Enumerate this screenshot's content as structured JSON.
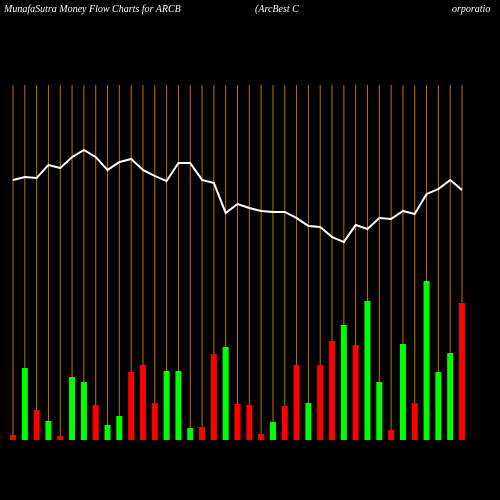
{
  "chart_data": {
    "type": "money-flow",
    "title": "MunafaSutra  Money Flow  Charts for ARCB",
    "subtitle_left": "(ArcBest C",
    "subtitle_right": "orporatio",
    "ylim": [
      0,
      355
    ],
    "grid_color": "#c07000",
    "line_color": "#ffffff",
    "bars": {
      "values": [
        5,
        72,
        30,
        19,
        4,
        63,
        58,
        35,
        15,
        24,
        68,
        75,
        37,
        69,
        69,
        12,
        13,
        86,
        93,
        36,
        35,
        6,
        18,
        34,
        75,
        37,
        75,
        99,
        115,
        95,
        139,
        58,
        10,
        96,
        37,
        159,
        68,
        87,
        137
      ],
      "colors": [
        "#ff0000",
        "#00ff00",
        "#ff0000",
        "#00ff00",
        "#ff0000",
        "#00ff00",
        "#00ff00",
        "#ff0000",
        "#00ff00",
        "#00ff00",
        "#ff0000",
        "#ff0000",
        "#ff0000",
        "#00ff00",
        "#00ff00",
        "#00ff00",
        "#ff0000",
        "#ff0000",
        "#00ff00",
        "#ff0000",
        "#ff0000",
        "#ff0000",
        "#00ff00",
        "#ff0000",
        "#ff0000",
        "#00ff00",
        "#ff0000",
        "#ff0000",
        "#00ff00",
        "#ff0000",
        "#00ff00",
        "#00ff00",
        "#ff0000",
        "#00ff00",
        "#ff0000",
        "#00ff00",
        "#00ff00",
        "#00ff00",
        "#ff0000"
      ]
    },
    "line": {
      "values": [
        260,
        263,
        262,
        275,
        272,
        283,
        290,
        283,
        270,
        278,
        281,
        270,
        264,
        259,
        277,
        277,
        260,
        257,
        227,
        236,
        232,
        229,
        228,
        228,
        222,
        214,
        213,
        203,
        198,
        215,
        211,
        222,
        221,
        229,
        226,
        246,
        251,
        260,
        250
      ]
    }
  }
}
